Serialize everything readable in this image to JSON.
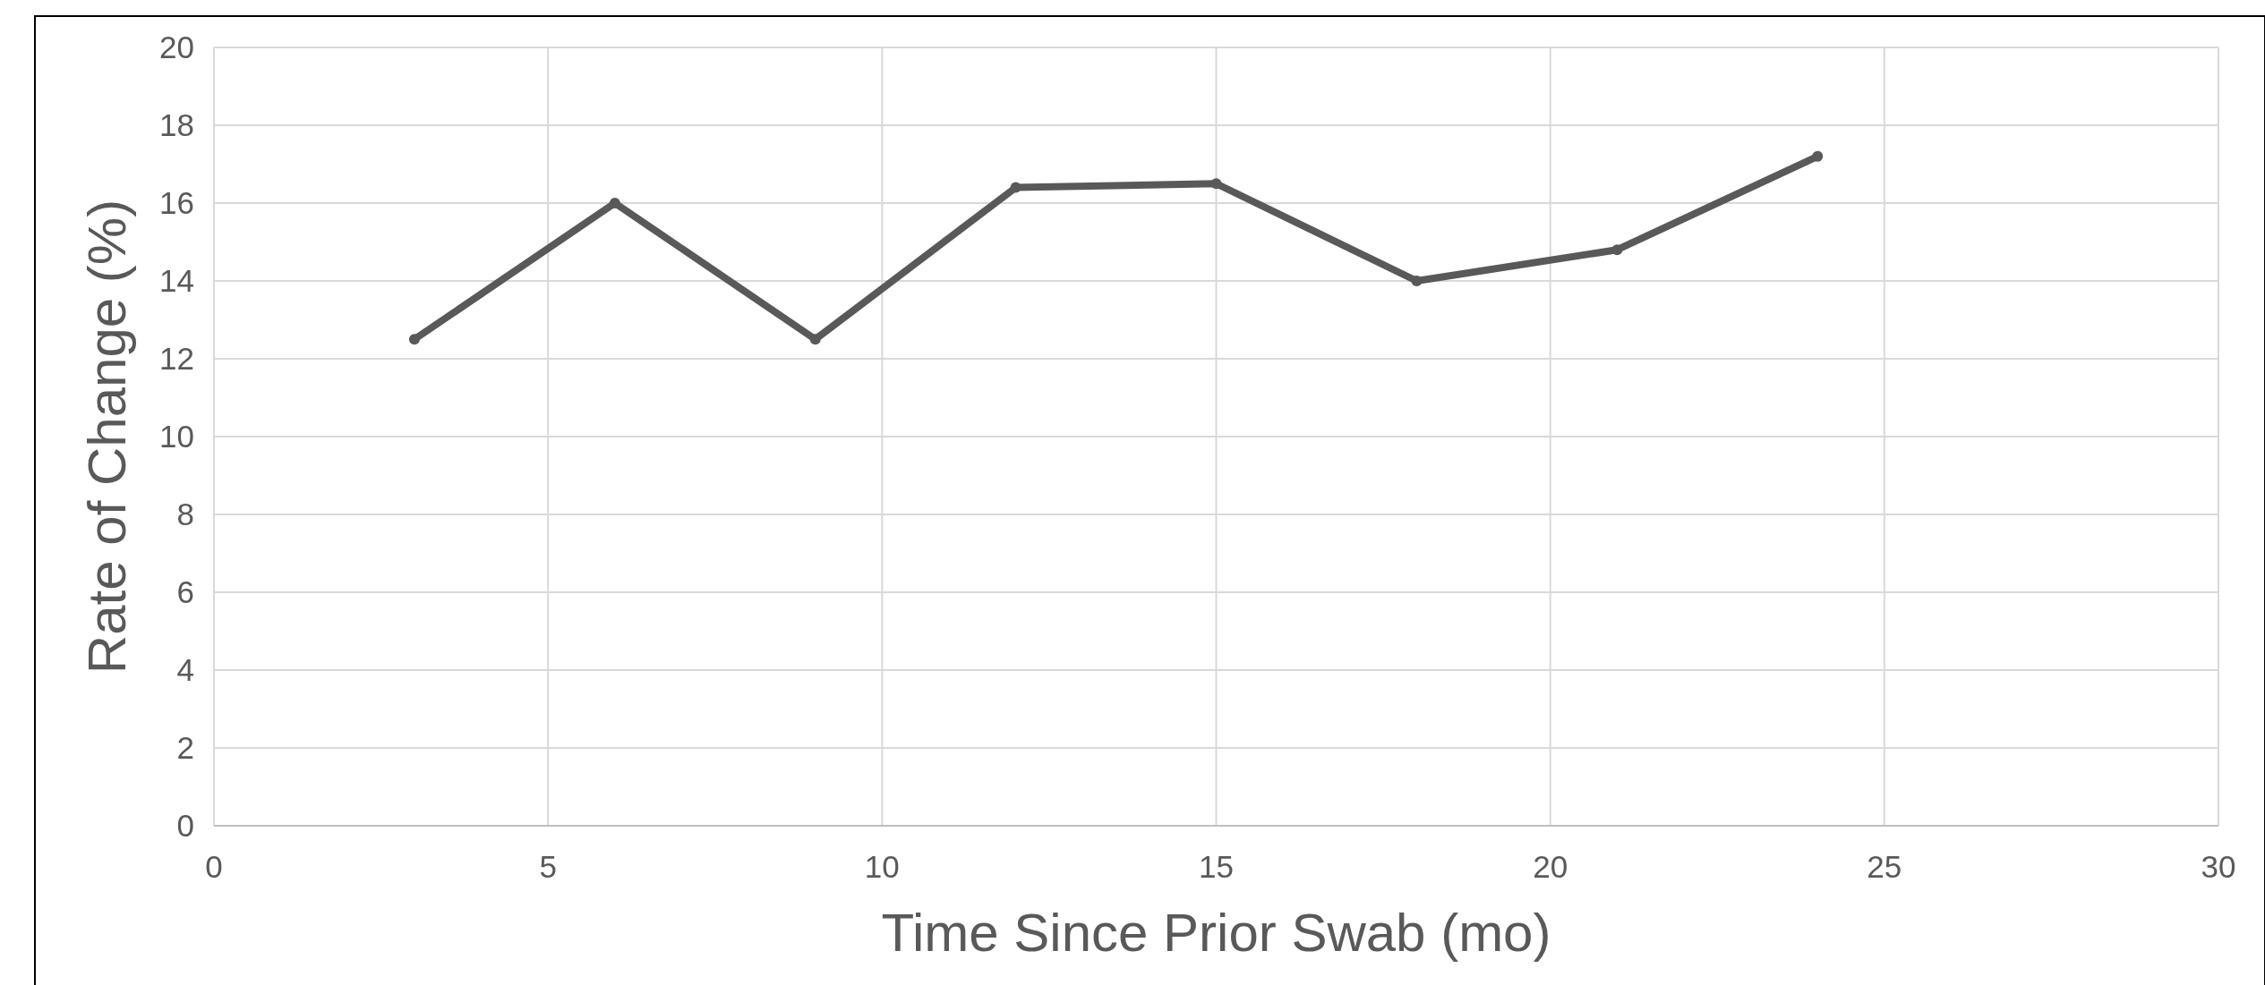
{
  "chart_data": {
    "type": "line",
    "xlabel": "Time Since Prior Swab (mo)",
    "ylabel": "Rate of Change (%)",
    "x": [
      3,
      6,
      9,
      12,
      15,
      18,
      21,
      24
    ],
    "series": [
      {
        "color": "#595959",
        "values": [
          12.5,
          16.0,
          12.5,
          16.4,
          16.5,
          14.0,
          14.8,
          17.2
        ]
      }
    ],
    "xlim": [
      0,
      30
    ],
    "xticks": [
      0,
      5,
      10,
      15,
      20,
      25,
      30
    ],
    "ylim": [
      0,
      20
    ],
    "yticks": [
      0,
      2,
      4,
      6,
      8,
      10,
      12,
      14,
      16,
      18,
      20
    ],
    "grid": true,
    "marker": "circle",
    "line_style": "solid"
  }
}
